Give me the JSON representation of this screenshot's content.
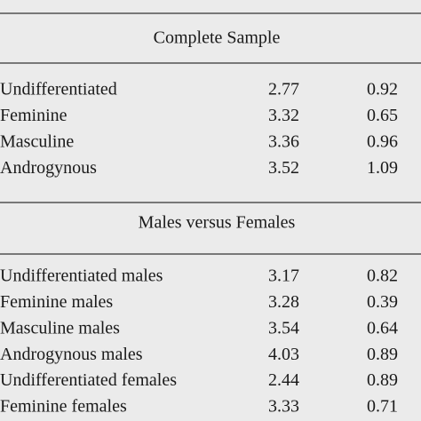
{
  "table": {
    "sections": [
      {
        "title": "Complete Sample",
        "rows": [
          [
            "Undifferentiated",
            2.77,
            0.92
          ],
          [
            "Feminine",
            3.32,
            0.65
          ],
          [
            "Masculine",
            3.36,
            0.96
          ],
          [
            "Androgynous",
            3.52,
            1.09
          ]
        ]
      },
      {
        "title": "Males versus Females",
        "rows": [
          [
            "Undifferentiated males",
            3.17,
            0.82
          ],
          [
            "Feminine males",
            3.28,
            0.39
          ],
          [
            "Masculine males",
            3.54,
            0.64
          ],
          [
            "Androgynous males",
            4.03,
            0.89
          ],
          [
            "Undifferentiated females",
            2.44,
            0.89
          ],
          [
            "Feminine females",
            3.33,
            0.71
          ]
        ]
      }
    ]
  }
}
